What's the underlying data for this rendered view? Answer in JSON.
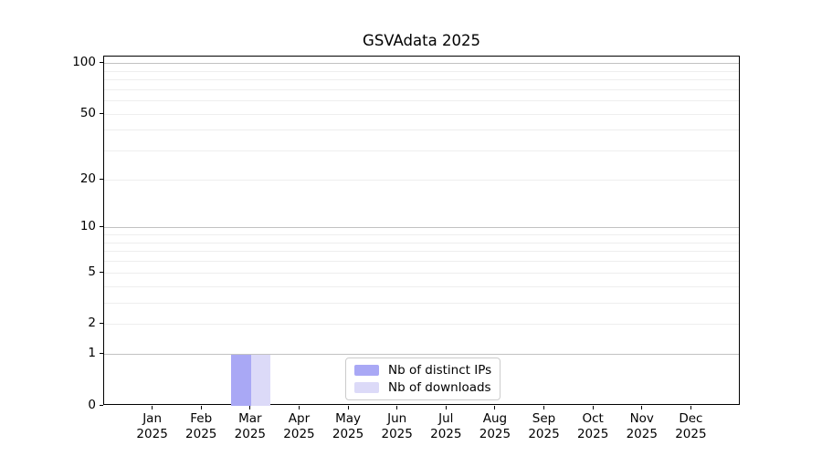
{
  "figure": {
    "title": "GSVAdata 2025"
  },
  "chart_data": {
    "type": "bar",
    "title": "GSVAdata 2025",
    "categories": [
      "Jan",
      "Feb",
      "Mar",
      "Apr",
      "May",
      "Jun",
      "Jul",
      "Aug",
      "Sep",
      "Oct",
      "Nov",
      "Dec"
    ],
    "category_year": "2025",
    "series": [
      {
        "name": "Nb of distinct IPs",
        "color": "#a9a8f5",
        "values": [
          0,
          0,
          1,
          0,
          0,
          0,
          0,
          0,
          0,
          0,
          0,
          0
        ]
      },
      {
        "name": "Nb of downloads",
        "color": "#dcdaf8",
        "values": [
          0,
          0,
          1,
          0,
          0,
          0,
          0,
          0,
          0,
          0,
          0,
          0
        ]
      }
    ],
    "y_scale": "log1p",
    "ylim": [
      0,
      110
    ],
    "y_tick_labels": [
      100,
      50,
      20,
      10,
      5,
      2,
      1,
      0
    ],
    "y_major_gridlines": [
      1,
      10,
      100
    ],
    "y_minor_gridlines": [
      2,
      3,
      4,
      5,
      6,
      7,
      8,
      9,
      20,
      30,
      40,
      50,
      60,
      70,
      80,
      90
    ],
    "grid": "horizontal-only",
    "legend": {
      "position": "inside-bottom-center",
      "items": [
        "Nb of distinct IPs",
        "Nb of downloads"
      ]
    },
    "colors": {
      "major_grid": "#c2c2c2",
      "minor_grid": "#eeeeee",
      "axis": "#000000",
      "legend_border": "#cccccc"
    }
  }
}
